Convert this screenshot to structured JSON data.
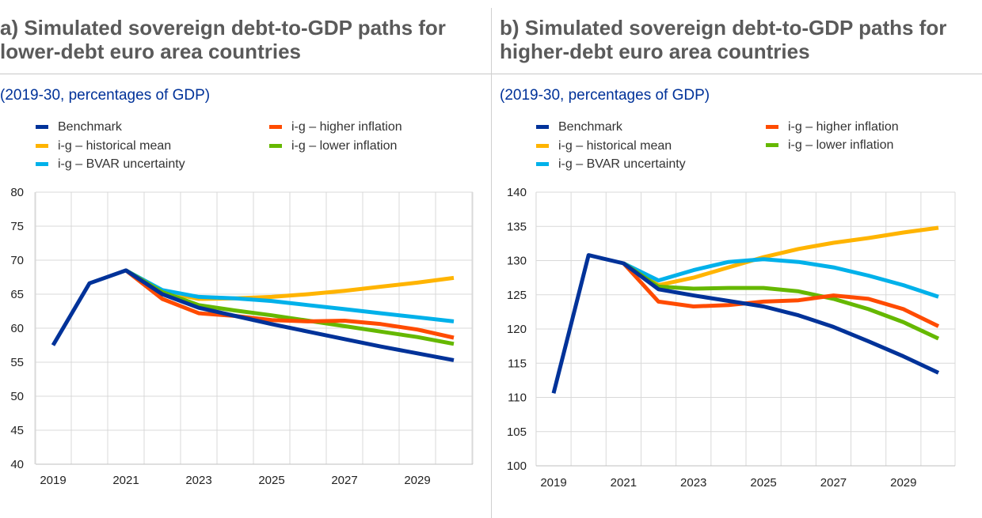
{
  "panels": [
    {
      "title": "a) Simulated sovereign debt-to-GDP paths for lower-debt euro area countries",
      "subtitle": "(2019-30, percentages of GDP)"
    },
    {
      "title": "b) Simulated sovereign debt-to-GDP paths for higher-debt euro area countries",
      "subtitle": "(2019-30, percentages of GDP)"
    }
  ],
  "colors": {
    "benchmark": "#003299",
    "historical_mean": "#FFB400",
    "bvar_uncertainty": "#00B1EA",
    "higher_inflation": "#FF4B00",
    "lower_inflation": "#65B800",
    "grid": "#d9d9d9",
    "axis_text": "#222222"
  },
  "chart_data": [
    {
      "type": "line",
      "x": [
        2019,
        2020,
        2021,
        2022,
        2023,
        2024,
        2025,
        2026,
        2027,
        2028,
        2029,
        2030
      ],
      "x_tick_labels": [
        "2019",
        "2021",
        "2023",
        "2025",
        "2027",
        "2029"
      ],
      "ylim": [
        40,
        80
      ],
      "y_ticks": [
        40,
        45,
        50,
        55,
        60,
        65,
        70,
        75,
        80
      ],
      "grid": true,
      "legend_position": "top",
      "series": [
        {
          "name": "Benchmark",
          "color_key": "benchmark",
          "values": [
            57.5,
            66.6,
            68.5,
            65.0,
            63.0,
            61.8,
            60.6,
            59.5,
            58.4,
            57.3,
            56.3,
            55.3
          ]
        },
        {
          "name": "i-g – historical mean",
          "color_key": "historical_mean",
          "values": [
            null,
            null,
            68.5,
            65.4,
            64.3,
            64.4,
            64.6,
            65.0,
            65.5,
            66.1,
            66.7,
            67.4
          ]
        },
        {
          "name": "i-g – BVAR uncertainty",
          "color_key": "bvar_uncertainty",
          "values": [
            null,
            null,
            68.5,
            65.6,
            64.6,
            64.4,
            64.0,
            63.4,
            62.8,
            62.2,
            61.6,
            61.0
          ]
        },
        {
          "name": "i-g – higher inflation",
          "color_key": "higher_inflation",
          "values": [
            null,
            null,
            68.5,
            64.3,
            62.2,
            61.8,
            61.2,
            61.0,
            61.1,
            60.6,
            59.8,
            58.6
          ]
        },
        {
          "name": "i-g – lower inflation",
          "color_key": "lower_inflation",
          "values": [
            null,
            null,
            68.5,
            65.3,
            63.4,
            62.6,
            61.9,
            61.1,
            60.3,
            59.5,
            58.7,
            57.7
          ]
        }
      ]
    },
    {
      "type": "line",
      "x": [
        2019,
        2020,
        2021,
        2022,
        2023,
        2024,
        2025,
        2026,
        2027,
        2028,
        2029,
        2030
      ],
      "x_tick_labels": [
        "2019",
        "2021",
        "2023",
        "2025",
        "2027",
        "2029"
      ],
      "ylim": [
        100,
        140
      ],
      "y_ticks": [
        100,
        105,
        110,
        115,
        120,
        125,
        130,
        135,
        140
      ],
      "grid": true,
      "legend_position": "top",
      "series": [
        {
          "name": "Benchmark",
          "color_key": "benchmark",
          "values": [
            110.6,
            130.8,
            129.6,
            125.8,
            124.9,
            124.1,
            123.3,
            122.0,
            120.3,
            118.2,
            116.0,
            113.6
          ]
        },
        {
          "name": "i-g – historical mean",
          "color_key": "historical_mean",
          "values": [
            null,
            null,
            129.6,
            126.4,
            127.5,
            129.0,
            130.5,
            131.7,
            132.6,
            133.3,
            134.1,
            134.8
          ]
        },
        {
          "name": "i-g – BVAR uncertainty",
          "color_key": "bvar_uncertainty",
          "values": [
            null,
            null,
            129.6,
            127.1,
            128.6,
            129.8,
            130.2,
            129.8,
            129.0,
            127.8,
            126.4,
            124.7
          ]
        },
        {
          "name": "i-g – higher inflation",
          "color_key": "higher_inflation",
          "values": [
            null,
            null,
            129.6,
            124.0,
            123.3,
            123.5,
            124.0,
            124.2,
            124.9,
            124.4,
            122.9,
            120.4
          ]
        },
        {
          "name": "i-g – lower inflation",
          "color_key": "lower_inflation",
          "values": [
            null,
            null,
            129.6,
            126.2,
            125.9,
            126.0,
            126.0,
            125.5,
            124.4,
            122.9,
            121.0,
            118.6
          ]
        }
      ]
    }
  ]
}
